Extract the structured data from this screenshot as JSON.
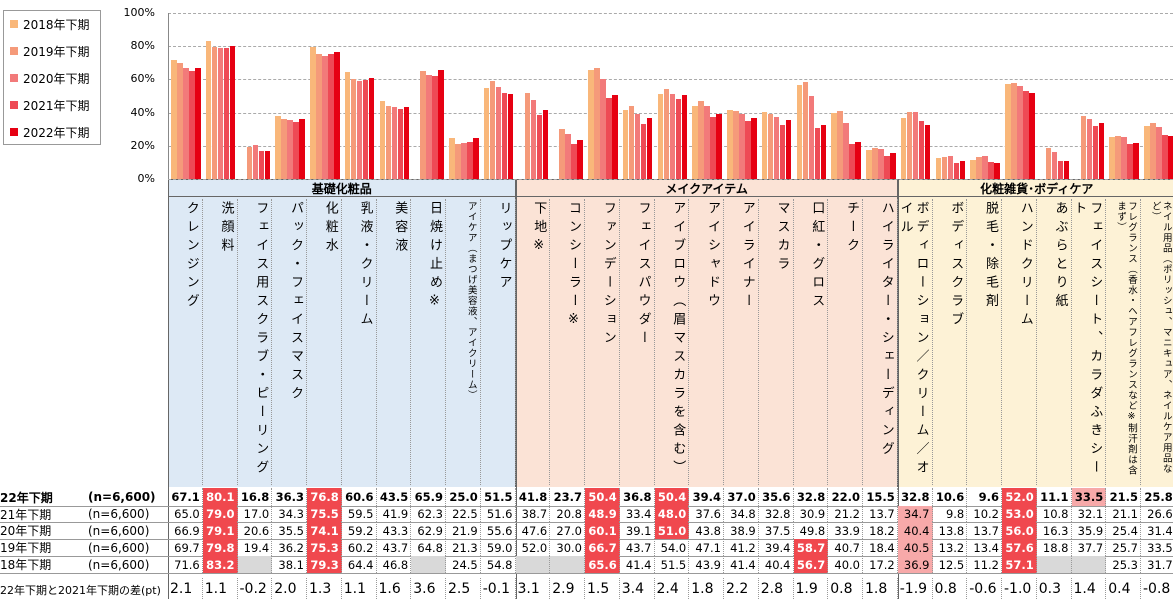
{
  "chart_data": {
    "type": "bar",
    "ylim": [
      0,
      100
    ],
    "yticks": [
      {
        "value": 0,
        "label": "0%"
      },
      {
        "value": 20,
        "label": "20%"
      },
      {
        "value": 40,
        "label": "40%"
      },
      {
        "value": 60,
        "label": "60%"
      },
      {
        "value": 80,
        "label": "80%"
      },
      {
        "value": 100,
        "label": "100%"
      }
    ],
    "grid": true,
    "legend": "top-left",
    "groups": [
      {
        "name": "基礎化粧品",
        "color": "#dde9f5",
        "categories": [
          "クレンジング",
          "洗顔料",
          "フェイス用スクラブ・ピーリング",
          "パック・フェイスマスク",
          "化粧水",
          "乳液・クリーム",
          "美容液",
          "日焼け止め※",
          "アイケア（まつげ美容液、アイクリーム）",
          "リップケア"
        ]
      },
      {
        "name": "メイクアイテム",
        "color": "#fbe3d6",
        "categories": [
          "下地※",
          "コンシーラー※",
          "ファンデーション",
          "フェイスパウダー",
          "アイブロウ（眉マスカラを含む）",
          "アイシャドウ",
          "アイライナー",
          "マスカラ",
          "口紅・グロス",
          "チーク",
          "ハイライター・シェーディング"
        ]
      },
      {
        "name": "化粧雑貨･ボディケア",
        "color": "#fdf2d6",
        "categories": [
          "ボディローション／クリーム／オイル",
          "ボディスクラブ",
          "脱毛・除毛剤",
          "ハンドクリーム",
          "あぶらとり紙",
          "フェイスシート、カラダふきシート",
          "フレグランス（香水・ヘアフレグランスなど※制汗剤は含まず）",
          "ネイル用品（ポリッシュ、マニキュア、ネイルケア用品など）"
        ]
      }
    ],
    "series": [
      {
        "name": "2018年下期",
        "row_label": "18年下期",
        "n": "(n=6,600)",
        "color": "#f9b77a",
        "values": [
          71.6,
          83.2,
          null,
          38.1,
          79.3,
          64.4,
          46.8,
          null,
          24.5,
          54.8,
          null,
          null,
          65.6,
          41.4,
          51.5,
          43.9,
          41.4,
          40.4,
          56.7,
          40.0,
          17.2,
          36.9,
          12.5,
          11.2,
          57.1,
          null,
          null,
          25.3,
          31.7
        ],
        "value_labels": [
          "71.6",
          "83.2",
          null,
          "38.1",
          "79.3",
          "64.4",
          "46.8",
          null,
          "24.5",
          "54.8",
          null,
          null,
          "65.6",
          "41.4",
          "51.5",
          "43.9",
          "41.4",
          "40.4",
          "56.7",
          "40.0",
          "17.2",
          "36.9",
          "12.5",
          "11.2",
          "57.1",
          null,
          null,
          "25.3",
          "31.7"
        ],
        "highlight": [
          1,
          4,
          12,
          18,
          24
        ],
        "highlight_light": [
          21
        ]
      },
      {
        "name": "2019年下期",
        "row_label": "19年下期",
        "n": "(n=6,600)",
        "color": "#f59a7a",
        "values": [
          69.7,
          79.8,
          19.4,
          36.2,
          75.3,
          60.2,
          43.7,
          64.8,
          21.3,
          59.0,
          52.0,
          30.0,
          66.7,
          43.7,
          54.0,
          47.1,
          41.2,
          39.4,
          58.7,
          40.7,
          18.4,
          40.5,
          13.2,
          13.4,
          57.6,
          18.8,
          37.7,
          25.7,
          33.5
        ],
        "value_labels": [
          "69.7",
          "79.8",
          "19.4",
          "36.2",
          "75.3",
          "60.2",
          "43.7",
          "64.8",
          "21.3",
          "59.0",
          "52.0",
          "30.0",
          "66.7",
          "43.7",
          "54.0",
          "47.1",
          "41.2",
          "39.4",
          "58.7",
          "40.7",
          "18.4",
          "40.5",
          "13.2",
          "13.4",
          "57.6",
          "18.8",
          "37.7",
          "25.7",
          "33.5"
        ],
        "highlight": [
          1,
          4,
          12,
          18,
          24
        ],
        "highlight_light": [
          21
        ]
      },
      {
        "name": "2020年下期",
        "row_label": "20年下期",
        "n": "(n=6,600)",
        "color": "#f27a7a",
        "values": [
          66.9,
          79.1,
          20.6,
          35.5,
          74.1,
          59.2,
          43.3,
          62.9,
          21.9,
          55.6,
          47.6,
          27.0,
          60.1,
          39.1,
          51.0,
          43.8,
          38.9,
          37.5,
          49.8,
          33.9,
          18.2,
          40.4,
          13.8,
          13.7,
          56.0,
          16.3,
          35.9,
          25.4,
          31.4
        ],
        "value_labels": [
          "66.9",
          "79.1",
          "20.6",
          "35.5",
          "74.1",
          "59.2",
          "43.3",
          "62.9",
          "21.9",
          "55.6",
          "47.6",
          "27.0",
          "60.1",
          "39.1",
          "51.0",
          "43.8",
          "38.9",
          "37.5",
          "49.8",
          "33.9",
          "18.2",
          "40.4",
          "13.8",
          "13.7",
          "56.0",
          "16.3",
          "35.9",
          "25.4",
          "31.4"
        ],
        "highlight": [
          1,
          4,
          12,
          14,
          24
        ],
        "highlight_light": [
          21
        ]
      },
      {
        "name": "2021年下期",
        "row_label": "21年下期",
        "n": "(n=6,600)",
        "color": "#ee4a55",
        "values": [
          65.0,
          79.0,
          17.0,
          34.3,
          75.5,
          59.5,
          41.9,
          62.3,
          22.5,
          51.6,
          38.7,
          20.8,
          48.9,
          33.4,
          48.0,
          37.6,
          34.8,
          32.8,
          30.9,
          21.2,
          13.7,
          34.7,
          9.8,
          10.2,
          53.0,
          10.8,
          32.1,
          21.1,
          26.6
        ],
        "value_labels": [
          "65.0",
          "79.0",
          "17.0",
          "34.3",
          "75.5",
          "59.5",
          "41.9",
          "62.3",
          "22.5",
          "51.6",
          "38.7",
          "20.8",
          "48.9",
          "33.4",
          "48.0",
          "37.6",
          "34.8",
          "32.8",
          "30.9",
          "21.2",
          "13.7",
          "34.7",
          "9.8",
          "10.2",
          "53.0",
          "10.8",
          "32.1",
          "21.1",
          "26.6"
        ],
        "highlight": [
          1,
          4,
          12,
          14,
          24
        ],
        "highlight_light": [
          21
        ]
      },
      {
        "name": "2022年下期",
        "row_label": "22年下期",
        "n": "(n=6,600)",
        "color": "#e60012",
        "values": [
          67.1,
          80.1,
          16.8,
          36.3,
          76.8,
          60.6,
          43.5,
          65.9,
          25.0,
          51.5,
          41.8,
          23.7,
          50.4,
          36.8,
          50.4,
          39.4,
          37.0,
          35.6,
          32.8,
          22.0,
          15.5,
          32.8,
          10.6,
          9.6,
          52.0,
          11.1,
          33.5,
          21.5,
          25.8
        ],
        "value_labels": [
          "67.1",
          "80.1",
          "16.8",
          "36.3",
          "76.8",
          "60.6",
          "43.5",
          "65.9",
          "25.0",
          "51.5",
          "41.8",
          "23.7",
          "50.4",
          "36.8",
          "50.4",
          "39.4",
          "37.0",
          "35.6",
          "32.8",
          "22.0",
          "15.5",
          "32.8",
          "10.6",
          "9.6",
          "52.0",
          "11.1",
          "33.5",
          "21.5",
          "25.8"
        ],
        "highlight": [
          1,
          4,
          12,
          14,
          24
        ],
        "highlight_light": [
          26
        ]
      }
    ],
    "diff": {
      "label": "22年下期と2021年下期の差(pt)",
      "values": [
        "2.1",
        "1.1",
        "-0.2",
        "2.0",
        "1.3",
        "1.1",
        "1.6",
        "3.6",
        "2.5",
        "-0.1",
        "3.1",
        "2.9",
        "1.5",
        "3.4",
        "2.4",
        "1.8",
        "2.2",
        "2.8",
        "1.9",
        "0.8",
        "1.8",
        "-1.9",
        "0.8",
        "-0.6",
        "-1.0",
        "0.3",
        "1.4",
        "0.4",
        "-0.8"
      ]
    }
  }
}
